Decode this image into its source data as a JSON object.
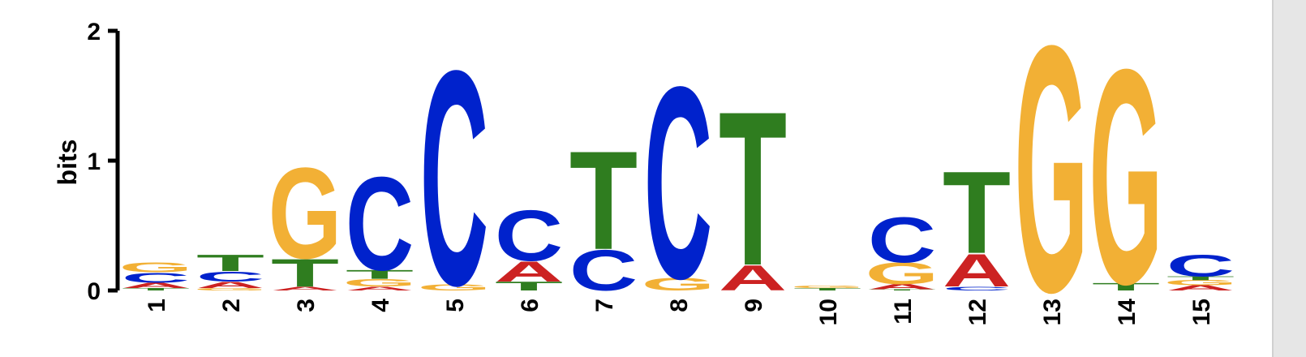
{
  "chart_data": {
    "type": "sequence-logo",
    "ylabel": "bits",
    "ylim": [
      0,
      2
    ],
    "yticks": [
      "0",
      "1",
      "2"
    ],
    "colors": {
      "A": "#cc2222",
      "C": "#0022cc",
      "G": "#f2b035",
      "T": "#2f7d1f"
    },
    "positions": [
      {
        "label": "1",
        "letters": [
          {
            "base": "T",
            "bits": 0.02
          },
          {
            "base": "A",
            "bits": 0.04
          },
          {
            "base": "C",
            "bits": 0.08
          },
          {
            "base": "G",
            "bits": 0.08
          }
        ]
      },
      {
        "label": "2",
        "letters": [
          {
            "base": "G",
            "bits": 0.02
          },
          {
            "base": "A",
            "bits": 0.05
          },
          {
            "base": "C",
            "bits": 0.08
          },
          {
            "base": "T",
            "bits": 0.13
          }
        ]
      },
      {
        "label": "3",
        "letters": [
          {
            "base": "A",
            "bits": 0.03
          },
          {
            "base": "T",
            "bits": 0.22
          },
          {
            "base": "G",
            "bits": 0.72
          }
        ]
      },
      {
        "label": "4",
        "letters": [
          {
            "base": "A",
            "bits": 0.03
          },
          {
            "base": "G",
            "bits": 0.06
          },
          {
            "base": "T",
            "bits": 0.07
          },
          {
            "base": "C",
            "bits": 0.74
          }
        ]
      },
      {
        "label": "5",
        "letters": [
          {
            "base": "G",
            "bits": 0.05
          },
          {
            "base": "C",
            "bits": 1.7
          }
        ]
      },
      {
        "label": "6",
        "letters": [
          {
            "base": "T",
            "bits": 0.07
          },
          {
            "base": "A",
            "bits": 0.16
          },
          {
            "base": "C",
            "bits": 0.4
          }
        ]
      },
      {
        "label": "7",
        "letters": [
          {
            "base": "C",
            "bits": 0.32
          },
          {
            "base": "T",
            "bits": 0.78
          }
        ]
      },
      {
        "label": "8",
        "letters": [
          {
            "base": "G",
            "bits": 0.1
          },
          {
            "base": "C",
            "bits": 1.52
          }
        ]
      },
      {
        "label": "9",
        "letters": [
          {
            "base": "A",
            "bits": 0.2
          },
          {
            "base": "T",
            "bits": 1.22
          }
        ]
      },
      {
        "label": "10",
        "letters": [
          {
            "base": "T",
            "bits": 0.02
          },
          {
            "base": "G",
            "bits": 0.02
          }
        ]
      },
      {
        "label": "11",
        "letters": [
          {
            "base": "T",
            "bits": 0.01
          },
          {
            "base": "A",
            "bits": 0.04
          },
          {
            "base": "G",
            "bits": 0.17
          },
          {
            "base": "C",
            "bits": 0.36
          }
        ]
      },
      {
        "label": "12",
        "letters": [
          {
            "base": "C",
            "bits": 0.03
          },
          {
            "base": "A",
            "bits": 0.26
          },
          {
            "base": "T",
            "bits": 0.65
          }
        ]
      },
      {
        "label": "13",
        "letters": [
          {
            "base": "G",
            "bits": 1.95
          }
        ]
      },
      {
        "label": "14",
        "letters": [
          {
            "base": "T",
            "bits": 0.06
          },
          {
            "base": "G",
            "bits": 1.7
          }
        ]
      },
      {
        "label": "15",
        "letters": [
          {
            "base": "A",
            "bits": 0.04
          },
          {
            "base": "G",
            "bits": 0.04
          },
          {
            "base": "T",
            "bits": 0.03
          },
          {
            "base": "C",
            "bits": 0.17
          }
        ]
      }
    ]
  }
}
